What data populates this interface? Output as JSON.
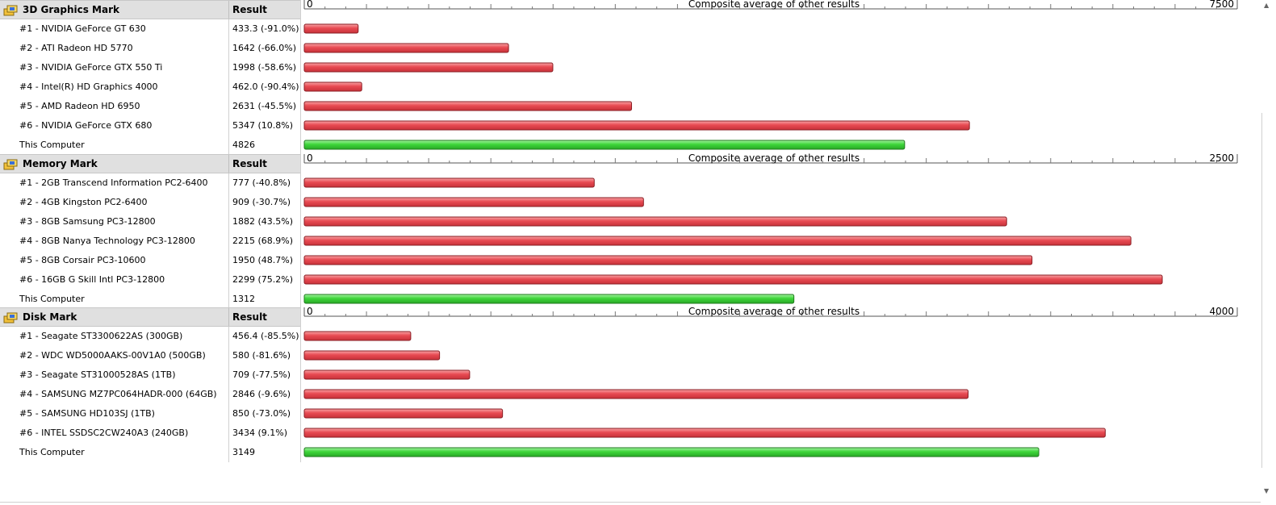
{
  "axis_caption": "Composite average of other results",
  "colors": {
    "other": "#e84a52",
    "this": "#3ed63a",
    "header_bg": "#e0e0e0"
  },
  "chart_data": [
    {
      "type": "bar",
      "title": "3D Graphics Mark",
      "result_label": "Result",
      "axis_min": 0,
      "axis_max": 7500,
      "icon": "benchmark-icon",
      "rows": [
        {
          "name": "#1 - NVIDIA GeForce GT 630",
          "result": "433.3 (-91.0%)",
          "value": 433.3,
          "is_this": false
        },
        {
          "name": "#2 - ATI Radeon HD 5770",
          "result": "1642 (-66.0%)",
          "value": 1642,
          "is_this": false
        },
        {
          "name": "#3 - NVIDIA GeForce GTX 550 Ti",
          "result": "1998 (-58.6%)",
          "value": 1998,
          "is_this": false
        },
        {
          "name": "#4 - Intel(R) HD Graphics 4000",
          "result": "462.0 (-90.4%)",
          "value": 462.0,
          "is_this": false
        },
        {
          "name": "#5 - AMD Radeon HD 6950",
          "result": "2631 (-45.5%)",
          "value": 2631,
          "is_this": false
        },
        {
          "name": "#6 - NVIDIA GeForce GTX 680",
          "result": "5347 (10.8%)",
          "value": 5347,
          "is_this": false
        },
        {
          "name": "This Computer",
          "result": "4826",
          "value": 4826,
          "is_this": true
        }
      ]
    },
    {
      "type": "bar",
      "title": "Memory Mark",
      "result_label": "Result",
      "axis_min": 0,
      "axis_max": 2500,
      "icon": "benchmark-icon",
      "rows": [
        {
          "name": "#1 - 2GB Transcend Information PC2-6400",
          "result": "777 (-40.8%)",
          "value": 777,
          "is_this": false
        },
        {
          "name": "#2 - 4GB Kingston PC2-6400",
          "result": "909 (-30.7%)",
          "value": 909,
          "is_this": false
        },
        {
          "name": "#3 - 8GB Samsung PC3-12800",
          "result": "1882 (43.5%)",
          "value": 1882,
          "is_this": false
        },
        {
          "name": "#4 - 8GB Nanya Technology PC3-12800",
          "result": "2215 (68.9%)",
          "value": 2215,
          "is_this": false
        },
        {
          "name": "#5 - 8GB Corsair PC3-10600",
          "result": "1950 (48.7%)",
          "value": 1950,
          "is_this": false
        },
        {
          "name": "#6 - 16GB G Skill Intl PC3-12800",
          "result": "2299 (75.2%)",
          "value": 2299,
          "is_this": false
        },
        {
          "name": "This Computer",
          "result": "1312",
          "value": 1312,
          "is_this": true
        }
      ]
    },
    {
      "type": "bar",
      "title": "Disk Mark",
      "result_label": "Result",
      "axis_min": 0,
      "axis_max": 4000,
      "icon": "benchmark-icon",
      "rows": [
        {
          "name": "#1 - Seagate ST3300622AS (300GB)",
          "result": "456.4 (-85.5%)",
          "value": 456.4,
          "is_this": false
        },
        {
          "name": "#2 - WDC WD5000AAKS-00V1A0 (500GB)",
          "result": "580 (-81.6%)",
          "value": 580,
          "is_this": false
        },
        {
          "name": "#3 - Seagate ST31000528AS (1TB)",
          "result": "709 (-77.5%)",
          "value": 709,
          "is_this": false
        },
        {
          "name": "#4 - SAMSUNG MZ7PC064HADR-000 (64GB)",
          "result": "2846 (-9.6%)",
          "value": 2846,
          "is_this": false
        },
        {
          "name": "#5 - SAMSUNG HD103SJ (1TB)",
          "result": "850 (-73.0%)",
          "value": 850,
          "is_this": false
        },
        {
          "name": "#6 - INTEL SSDSC2CW240A3 (240GB)",
          "result": "3434 (9.1%)",
          "value": 3434,
          "is_this": false
        },
        {
          "name": "This Computer",
          "result": "3149",
          "value": 3149,
          "is_this": true
        }
      ]
    }
  ]
}
